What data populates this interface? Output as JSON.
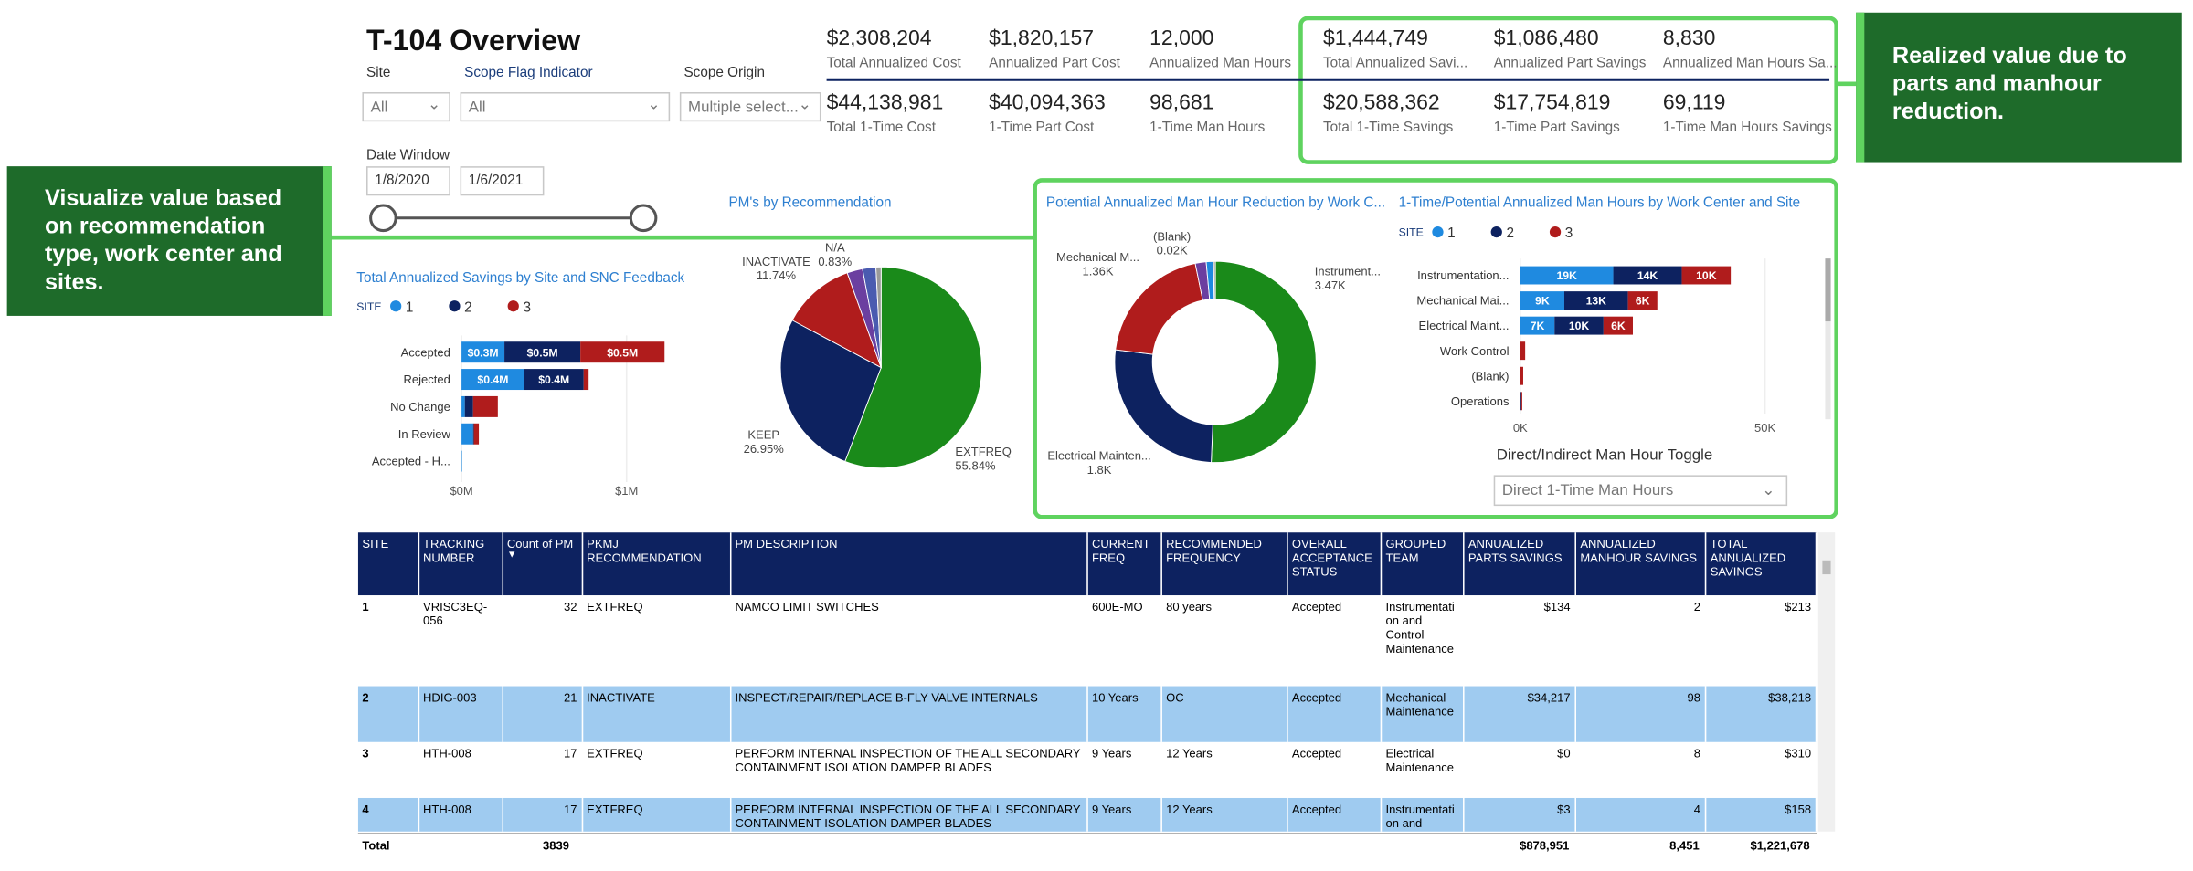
{
  "header": {
    "title": "T-104 Overview"
  },
  "filters": [
    {
      "label": "Site",
      "value": "All"
    },
    {
      "label": "Scope Flag Indicator",
      "value": "All"
    },
    {
      "label": "Scope Origin",
      "value": "Multiple select..."
    }
  ],
  "date_window": {
    "label": "Date Window",
    "start": "1/8/2020",
    "end": "1/6/2021"
  },
  "kpis": [
    {
      "value": "$2,308,204",
      "label": "Total Annualized Cost"
    },
    {
      "value": "$1,820,157",
      "label": "Annualized Part Cost"
    },
    {
      "value": "12,000",
      "label": "Annualized Man Hours"
    },
    {
      "value": "$1,444,749",
      "label": "Total Annualized Savi..."
    },
    {
      "value": "$1,086,480",
      "label": "Annualized Part Savings"
    },
    {
      "value": "8,830",
      "label": "Annualized Man Hours Sa..."
    },
    {
      "value": "$44,138,981",
      "label": "Total 1-Time Cost"
    },
    {
      "value": "$40,094,363",
      "label": "1-Time Part Cost"
    },
    {
      "value": "98,681",
      "label": "1-Time Man Hours"
    },
    {
      "value": "$20,588,362",
      "label": "Total 1-Time Savings"
    },
    {
      "value": "$17,754,819",
      "label": "1-Time Part Savings"
    },
    {
      "value": "69,119",
      "label": "1-Time Man Hours Savings"
    }
  ],
  "callouts": [
    "Realized value due to parts and manhour reduction.",
    "Visualize value based on recommendation type, work center and sites."
  ],
  "charts": [
    {
      "type": "bar",
      "orientation": "horizontal",
      "stacked": true,
      "title": "Total Annualized Savings by Site and SNC Feedback",
      "legend_title": "SITE",
      "categories": [
        "Accepted",
        "Rejected",
        "No Change",
        "In Review",
        "Accepted - H..."
      ],
      "series": [
        {
          "name": "1",
          "color": "#1f8ae0",
          "values": [
            260000,
            380000,
            20000,
            70000,
            3000
          ],
          "value_labels": [
            "$0.3M",
            "$0.4M",
            null,
            null,
            null
          ]
        },
        {
          "name": "2",
          "color": "#0d2260",
          "values": [
            460000,
            360000,
            50000,
            5000,
            0
          ],
          "value_labels": [
            "$0.5M",
            "$0.4M",
            null,
            null,
            null
          ]
        },
        {
          "name": "3",
          "color": "#b01c1c",
          "values": [
            510000,
            30000,
            150000,
            30000,
            0
          ],
          "value_labels": [
            "$0.5M",
            null,
            null,
            null,
            null
          ]
        }
      ],
      "xlim": [
        0,
        1300000
      ],
      "xticks": [
        {
          "value": 0,
          "label": "$0M"
        },
        {
          "value": 1000000,
          "label": "$1M"
        }
      ]
    },
    {
      "type": "pie",
      "title": "PM's by Recommendation",
      "categories": [
        "EXTFREQ",
        "KEEP",
        "INACTIVATE",
        null,
        null,
        "N/A"
      ],
      "values": [
        55.84,
        26.95,
        11.74,
        2.5,
        2.14,
        0.83
      ],
      "value_labels": [
        "55.84%",
        "26.95%",
        "11.74%",
        null,
        null,
        "0.83%"
      ],
      "colors": [
        "#1a8a1a",
        "#0d2260",
        "#b01c1c",
        "#6b3fa0",
        "#4a5bb0",
        "#9a9a9a"
      ]
    },
    {
      "type": "donut",
      "title": "Potential Annualized Man Hour Reduction by Work C...",
      "categories": [
        "Instrument...",
        "Electrical Mainten...",
        "Mechanical M...",
        null,
        null,
        "(Blank)"
      ],
      "values": [
        3470,
        1800,
        1360,
        120,
        80,
        20
      ],
      "value_labels": [
        "3.47K",
        "1.8K",
        "1.36K",
        null,
        null,
        "0.02K"
      ],
      "colors": [
        "#1a8a1a",
        "#0d2260",
        "#b01c1c",
        "#6b3fa0",
        "#1f8ae0",
        "#9a9a9a"
      ]
    },
    {
      "type": "bar",
      "orientation": "horizontal",
      "stacked": true,
      "title": "1-Time/Potential Annualized Man Hours by Work Center and Site",
      "legend_title": "SITE",
      "categories": [
        "Instrumentation...",
        "Mechanical Mai...",
        "Electrical Maint...",
        "Work Control",
        "(Blank)",
        "Operations"
      ],
      "series": [
        {
          "name": "1",
          "color": "#1f8ae0",
          "values": [
            19000,
            9000,
            7000,
            0,
            0,
            0
          ],
          "value_labels": [
            "19K",
            "9K",
            "7K",
            null,
            null,
            null
          ]
        },
        {
          "name": "2",
          "color": "#0d2260",
          "values": [
            14000,
            13000,
            10000,
            0,
            0,
            200
          ],
          "value_labels": [
            "14K",
            "13K",
            "10K",
            null,
            null,
            null
          ]
        },
        {
          "name": "3",
          "color": "#b01c1c",
          "values": [
            10000,
            6000,
            6000,
            1000,
            600,
            200
          ],
          "value_labels": [
            "10K",
            "6K",
            "6K",
            null,
            null,
            null
          ]
        }
      ],
      "xlim": [
        0,
        60000
      ],
      "xticks": [
        {
          "value": 0,
          "label": "0K"
        },
        {
          "value": 50000,
          "label": "50K"
        }
      ]
    }
  ],
  "toggle": {
    "label": "Direct/Indirect Man Hour Toggle",
    "value": "Direct 1-Time Man Hours"
  },
  "table": {
    "columns": [
      "SITE",
      "TRACKING NUMBER",
      "Count of PM",
      "PKMJ RECOMMENDATION",
      "PM DESCRIPTION",
      "CURRENT FREQ",
      "RECOMMENDED FREQUENCY",
      "OVERALL ACCEPTANCE STATUS",
      "GROUPED TEAM",
      "ANNUALIZED PARTS SAVINGS",
      "ANNUALIZED MANHOUR SAVINGS",
      "TOTAL ANNUALIZED SAVINGS"
    ],
    "rows": [
      [
        "1",
        "VRISC3EQ-056",
        "32",
        "EXTFREQ",
        "NAMCO LIMIT SWITCHES",
        "600E-MO",
        "80 years",
        "Accepted",
        "Instrumentation and Control Maintenance",
        "$134",
        "2",
        "$213"
      ],
      [
        "2",
        "HDIG-003",
        "21",
        "INACTIVATE",
        "INSPECT/REPAIR/REPLACE B-FLY VALVE INTERNALS",
        "10 Years",
        "OC",
        "Accepted",
        "Mechanical Maintenance",
        "$34,217",
        "98",
        "$38,218"
      ],
      [
        "3",
        "HTH-008",
        "17",
        "EXTFREQ",
        "PERFORM INTERNAL INSPECTION OF THE ALL SECONDARY CONTAINMENT ISOLATION DAMPER BLADES",
        "9 Years",
        "12 Years",
        "Accepted",
        "Electrical Maintenance",
        "$0",
        "8",
        "$310"
      ],
      [
        "4",
        "HTH-008",
        "17",
        "EXTFREQ",
        "PERFORM INTERNAL INSPECTION OF THE ALL SECONDARY CONTAINMENT ISOLATION DAMPER BLADES",
        "9 Years",
        "12 Years",
        "Accepted",
        "Instrumentation and",
        "$3",
        "4",
        "$158"
      ]
    ],
    "total": {
      "label": "Total",
      "count": "3839",
      "parts": "$878,951",
      "manhour": "8,451",
      "savings": "$1,221,678"
    }
  }
}
